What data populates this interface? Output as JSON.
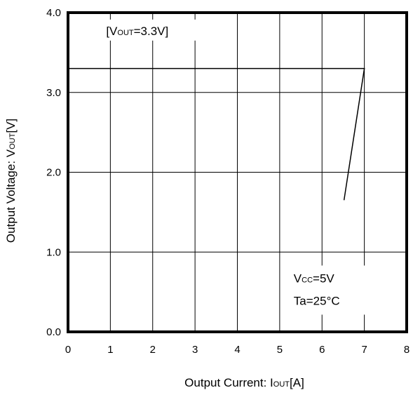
{
  "chart_data": {
    "type": "line",
    "xlabel": "Output Current: IOUT[A]",
    "xlabel_parts": {
      "main": "Output Current: I",
      "sub": "OUT",
      "tail": "[A]"
    },
    "ylabel": "Output Voltage: VOUT[V]",
    "ylabel_parts": {
      "main": "Output Voltage: V",
      "sub": "OUT",
      "tail": "[V]"
    },
    "xlim": [
      0,
      8
    ],
    "ylim": [
      0,
      4
    ],
    "x_ticks": [
      0,
      1,
      2,
      3,
      4,
      5,
      6,
      7,
      8
    ],
    "x_tick_labels": [
      "0",
      "1",
      "2",
      "3",
      "4",
      "5",
      "6",
      "7",
      "8"
    ],
    "y_ticks": [
      0,
      1,
      2,
      3,
      4
    ],
    "y_tick_labels": [
      "0.0",
      "1.0",
      "2.0",
      "3.0",
      "4.0"
    ],
    "grid": true,
    "series": [
      {
        "x": [
          0,
          7.0,
          6.52
        ],
        "y": [
          3.3,
          3.3,
          1.65
        ]
      }
    ],
    "annotations": {
      "vout": {
        "pre": "[V",
        "sub": "OUT",
        "post": "=3.3V]",
        "x": 0.9,
        "y": 3.72
      },
      "vcc": {
        "pre": "V",
        "sub": "CC",
        "post": "=5V",
        "x": 5.33,
        "y": 0.62
      },
      "ta": {
        "text": "Ta=25°C",
        "x": 5.33,
        "y": 0.34
      }
    }
  }
}
